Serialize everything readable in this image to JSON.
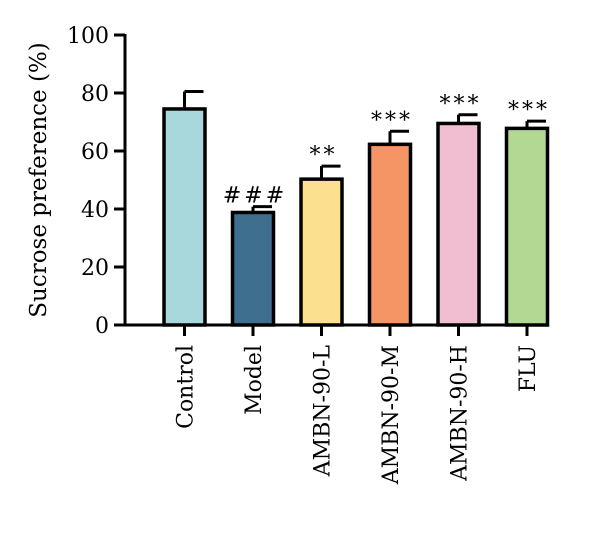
{
  "chart_data": {
    "type": "bar",
    "ylabel": "Sucrose preference (%)",
    "ylim": [
      0,
      100
    ],
    "yticks": [
      0,
      20,
      40,
      60,
      80,
      100
    ],
    "grid": false,
    "legend": "none",
    "categories": [
      "Control",
      "Model",
      "AMBN-90-L",
      "AMBN-90-M",
      "AMBN-90-H",
      "FLU"
    ],
    "values": [
      74.5,
      38.8,
      50.3,
      62.3,
      69.5,
      67.8
    ],
    "errors": [
      6.0,
      2.0,
      4.5,
      4.5,
      3.0,
      2.5
    ],
    "significance": [
      "",
      "###",
      "**",
      "***",
      "***",
      "***"
    ],
    "colors": [
      "#a8d8dc",
      "#3f6f8f",
      "#fde08f",
      "#f59566",
      "#f0bed0",
      "#b2d893"
    ]
  }
}
